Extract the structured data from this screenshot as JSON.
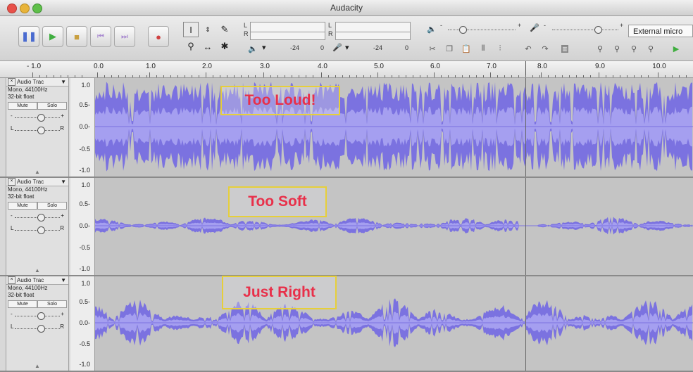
{
  "window": {
    "title": "Audacity"
  },
  "toolbar": {
    "transport_icons": [
      "pause-icon",
      "play-icon",
      "stop-icon",
      "skip-start-icon",
      "skip-end-icon",
      "record-icon"
    ],
    "meter_left": "L",
    "meter_right": "R",
    "meter_scale": [
      "-24",
      "0",
      "-24",
      "0"
    ],
    "output_device": "External micro",
    "slider_minus": "-",
    "slider_plus": "+"
  },
  "ruler": {
    "labels": [
      "- 1.0",
      "0.0",
      "1.0",
      "2.0",
      "3.0",
      "4.0",
      "5.0",
      "6.0",
      "7.0",
      "8.0",
      "9.0",
      "10.0"
    ]
  },
  "tracks": [
    {
      "name": "Audio Trac",
      "format": "Mono, 44100Hz",
      "depth": "32-bit float",
      "mute": "Mute",
      "solo": "Solo",
      "pan_l": "L",
      "pan_r": "R",
      "gain_minus": "-",
      "gain_plus": "+",
      "callout": "Too Loud!",
      "amplitude": 0.95
    },
    {
      "name": "Audio Trac",
      "format": "Mono, 44100Hz",
      "depth": "32-bit float",
      "mute": "Mute",
      "solo": "Solo",
      "pan_l": "L",
      "pan_r": "R",
      "gain_minus": "-",
      "gain_plus": "+",
      "callout": "Too Soft",
      "amplitude": 0.2
    },
    {
      "name": "Audio Trac",
      "format": "Mono, 44100Hz",
      "depth": "32-bit float",
      "mute": "Mute",
      "solo": "Solo",
      "pan_l": "L",
      "pan_r": "R",
      "gain_minus": "-",
      "gain_plus": "+",
      "callout": "Just Right",
      "amplitude": 0.55
    }
  ],
  "vruler_labels": [
    "1.0",
    "0.5-",
    "0.0-",
    "-0.5",
    "-1.0"
  ],
  "colors": {
    "waveform": "#7b72e0",
    "waveform_rms": "#a59ff0",
    "callout_text": "#e8304a",
    "callout_border": "#e6cf3a"
  }
}
